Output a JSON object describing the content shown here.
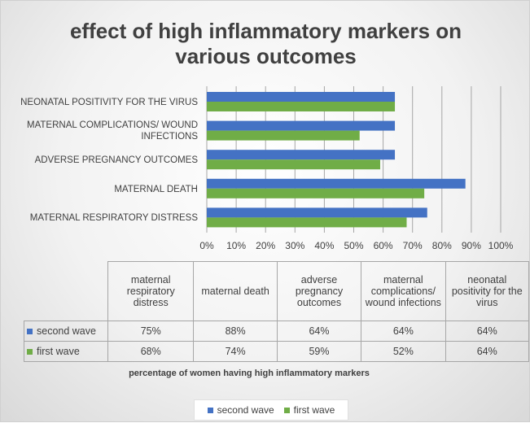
{
  "chart_data": {
    "type": "bar",
    "orientation": "horizontal",
    "title": "effect of high inflammatory markers on various outcomes",
    "x_label": "percentage of women having high inflammatory markers",
    "categories": [
      "maternal respiratory distress",
      "maternal death",
      "adverse pregnancy outcomes",
      "maternal complications/ wound infections",
      "neonatal positivity for the virus"
    ],
    "series": [
      {
        "name": "second wave",
        "color": "#4472c4",
        "values": [
          75,
          88,
          64,
          64,
          64
        ],
        "value_labels": [
          "75%",
          "88%",
          "64%",
          "64%",
          "64%"
        ]
      },
      {
        "name": "first wave",
        "color": "#70ad47",
        "values": [
          68,
          74,
          59,
          52,
          64
        ],
        "value_labels": [
          "68%",
          "74%",
          "59%",
          "52%",
          "64%"
        ]
      }
    ],
    "xlim": [
      0,
      100
    ],
    "xticks": [
      {
        "value": 0,
        "label": "0%"
      },
      {
        "value": 10,
        "label": "10%"
      },
      {
        "value": 20,
        "label": "20%"
      },
      {
        "value": 30,
        "label": "30%"
      },
      {
        "value": 40,
        "label": "40%"
      },
      {
        "value": 50,
        "label": "50%"
      },
      {
        "value": 60,
        "label": "60%"
      },
      {
        "value": 70,
        "label": "70%"
      },
      {
        "value": 80,
        "label": "80%"
      },
      {
        "value": 90,
        "label": "90%"
      },
      {
        "value": 100,
        "label": "100%"
      }
    ],
    "grid": true,
    "legend": "bottom"
  }
}
